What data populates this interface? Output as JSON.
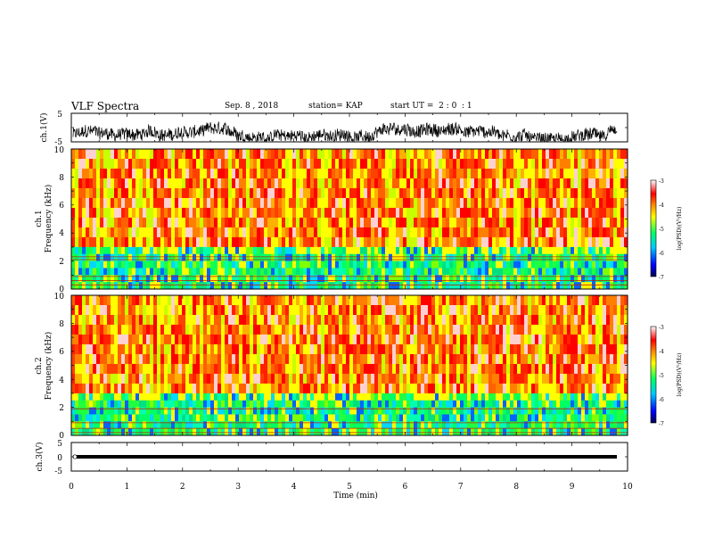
{
  "header": {
    "title": "VLF Spectra",
    "date": "Sep. 8 , 2018",
    "station": "station= KAP",
    "start_ut": "start UT =  2 : 0  : 1"
  },
  "chart_data": [
    {
      "type": "line",
      "ylabel": "ch.1(V)",
      "ylim": [
        -5,
        5
      ],
      "yticks": [
        "5",
        "-5"
      ],
      "xlim": [
        0,
        10
      ],
      "series": [
        {
          "color": "#000000",
          "description_level": -2.5,
          "amplitude": 4.5
        }
      ]
    },
    {
      "type": "heatmap",
      "ylabel_line1": "ch.1",
      "ylabel_line2": "Frequency  (kHz)",
      "ylim": [
        0,
        10
      ],
      "yticks": [
        "0",
        "2",
        "4",
        "6",
        "8",
        "10"
      ],
      "xlim": [
        0,
        10
      ],
      "colorbar": {
        "label": "log(PSD)(V²/Hz)",
        "range": [
          -7,
          -3
        ],
        "ticks": [
          "-3",
          "-4",
          "-5",
          "-6",
          "-7"
        ]
      },
      "noise_floor_top_khz": 3.0,
      "band_lines_khz": [
        2.3,
        2.1,
        0.9,
        0.6,
        0.3
      ]
    },
    {
      "type": "heatmap",
      "ylabel_line1": "ch.2",
      "ylabel_line2": "Frequency  (kHz)",
      "ylim": [
        0,
        10
      ],
      "yticks": [
        "0",
        "2",
        "4",
        "6",
        "8",
        "10"
      ],
      "xlim": [
        0,
        10
      ],
      "colorbar": {
        "label": "log(PSD)(V²/Hz)",
        "range": [
          -7,
          -3
        ],
        "ticks": [
          "-3",
          "-4",
          "-5",
          "-6",
          "-7"
        ]
      },
      "noise_floor_top_khz": 3.0,
      "band_lines_khz": [
        1.9,
        0.9,
        0.5,
        0.2
      ]
    },
    {
      "type": "line",
      "ylabel": "ch.3(V)",
      "ylim": [
        -5,
        5
      ],
      "yticks": [
        "5",
        "0",
        "-5"
      ],
      "xlim": [
        0,
        10
      ],
      "xlabel": "Time  (min)",
      "xticks": [
        "0",
        "1",
        "2",
        "3",
        "4",
        "5",
        "6",
        "7",
        "8",
        "9",
        "10"
      ],
      "series": [
        {
          "color": "#000000",
          "constant_value": 0
        }
      ]
    }
  ]
}
